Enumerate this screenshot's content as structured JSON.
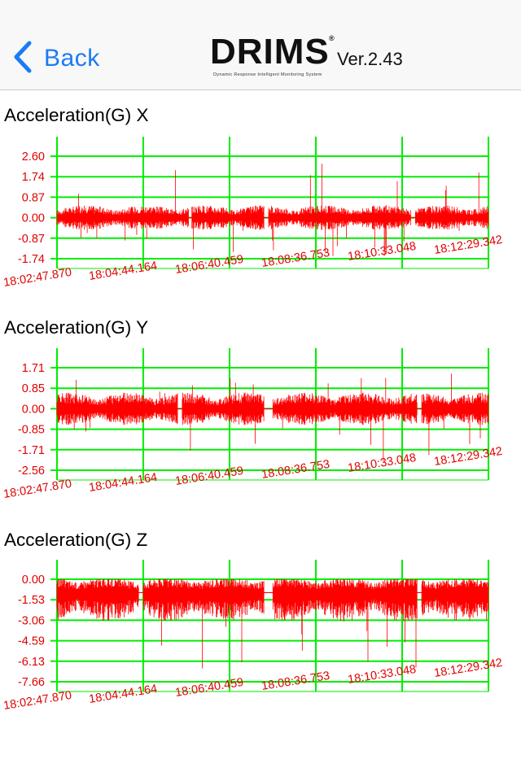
{
  "navbar": {
    "back_label": "Back",
    "logo_text": "DRIMS",
    "logo_mark": "®",
    "logo_tagline": "Dynamic Response Intelligent Monitoring System",
    "version": "Ver.2.43",
    "back_icon": "chevron-left-icon",
    "accent": "#1a7cf5"
  },
  "colors": {
    "signal": "#ff0000",
    "grid": "#00ee00",
    "tick": "#ff0000"
  },
  "chart_data": [
    {
      "type": "line",
      "title": "Acceleration(G) X",
      "y_ticks": [
        "2.60",
        "1.74",
        "0.87",
        "0.00",
        "-0.87",
        "-1.74"
      ],
      "ylim": [
        -1.74,
        2.6
      ],
      "x_ticks": [
        "18:02:47.870",
        "18:04:44.164",
        "18:06:40.459",
        "18:08:36.753",
        "18:10:33.048",
        "18:12:29.342"
      ],
      "series": [
        {
          "baseline": 0.0,
          "typical_amplitude": 0.35,
          "max": 2.38,
          "min": -1.65
        }
      ],
      "grid": true
    },
    {
      "type": "line",
      "title": "Acceleration(G) Y",
      "y_ticks": [
        "1.71",
        "0.85",
        "0.00",
        "-0.85",
        "-1.71",
        "-2.56"
      ],
      "ylim": [
        -2.56,
        1.71
      ],
      "x_ticks": [
        "18:02:47.870",
        "18:04:44.164",
        "18:06:40.459",
        "18:08:36.753",
        "18:10:33.048",
        "18:12:29.342"
      ],
      "series": [
        {
          "baseline": 0.0,
          "typical_amplitude": 0.45,
          "max": 1.6,
          "min": -2.4
        }
      ],
      "grid": true
    },
    {
      "type": "line",
      "title": "Acceleration(G) Z",
      "y_ticks": [
        "0.00",
        "-1.53",
        "-3.06",
        "-4.59",
        "-6.13",
        "-7.66"
      ],
      "ylim": [
        -7.66,
        0.0
      ],
      "x_ticks": [
        "18:02:47.870",
        "18:04:44.164",
        "18:06:40.459",
        "18:08:36.753",
        "18:10:33.048",
        "18:12:29.342"
      ],
      "series": [
        {
          "baseline": -1.0,
          "typical_amplitude": 0.8,
          "max": 0.0,
          "min": -6.7
        }
      ],
      "grid": true
    }
  ]
}
